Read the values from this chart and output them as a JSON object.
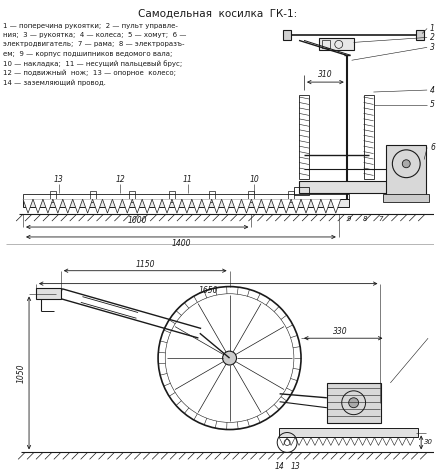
{
  "title": "Самодельная  косилка  ГК-1:",
  "legend_lines": [
    "1 — поперечина рукоятки;  2 — пульт управле-",
    "ния;  3 — рукоятка;  4 — колеса;  5 — хомут;  6 —",
    "электродвигатель;  7 — рама;  8 — электроразъ-",
    "ем;  9 — корпус подшипников ведомого вала;",
    "10 — накладка;  11 — несущий пальцевый брус;",
    "12 — подвижный  нож;  13 — опорное  колесо;",
    "14 — заземляющий провод."
  ],
  "bg_color": "#ffffff",
  "line_color": "#1a1a1a",
  "fig_width": 4.36,
  "fig_height": 4.74,
  "dpi": 100
}
